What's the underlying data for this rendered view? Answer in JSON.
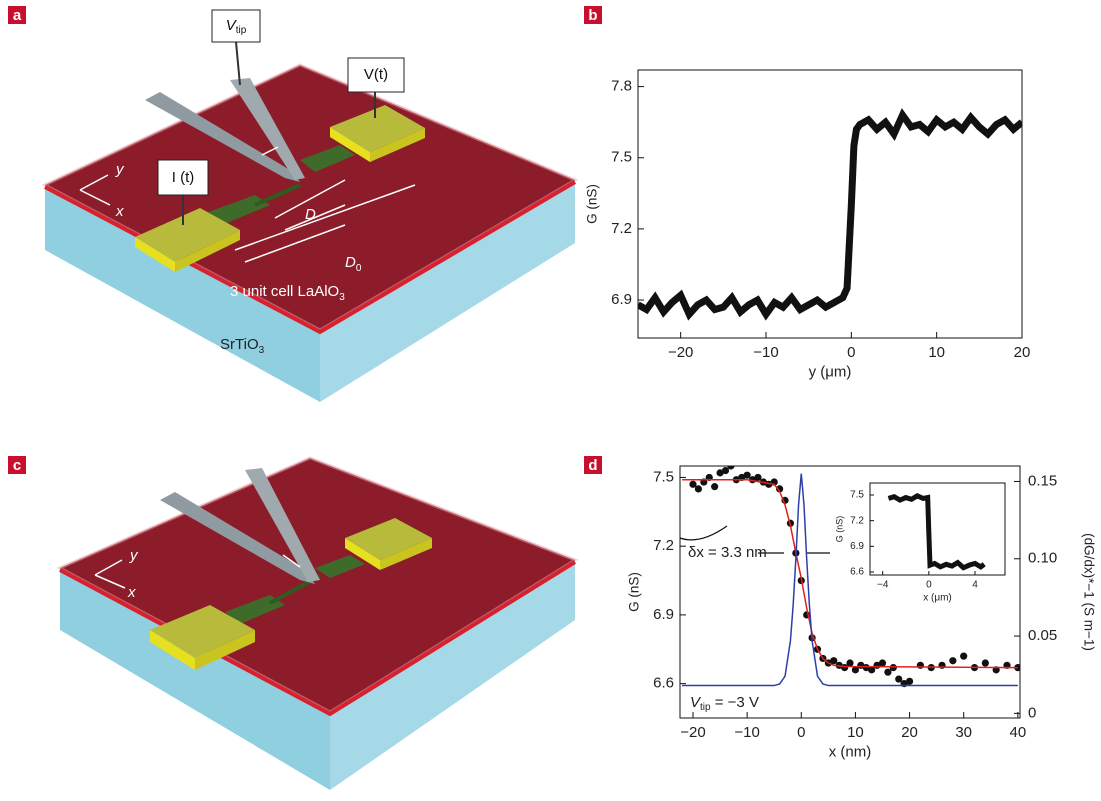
{
  "panel_labels": [
    "a",
    "b",
    "c",
    "d"
  ],
  "diagram_a": {
    "v_tip": {
      "main": "V",
      "sub": "tip"
    },
    "v_t": "V(t)",
    "i_t": "I (t)",
    "axis_y": "y",
    "axis_x": "x",
    "d": "D",
    "d0": {
      "main": "D",
      "sub": "0"
    },
    "layer": {
      "main": "3 unit cell LaAlO",
      "sub": "3"
    },
    "substrate": {
      "main": "SrTiO",
      "sub": "3"
    }
  },
  "diagram_c": {
    "axis_y": "y",
    "axis_x": "x"
  },
  "chart_data": [
    {
      "type": "line",
      "xlabel": "y (μm)",
      "ylabel": "G (nS)",
      "xlim": [
        -25,
        20
      ],
      "ylim": [
        6.74,
        7.87
      ],
      "xticks": [
        {
          "value": -20,
          "label": "−20"
        },
        {
          "value": -10,
          "label": "−10"
        },
        0,
        10,
        20
      ],
      "yticks": [
        6.9,
        7.2,
        7.5,
        7.8
      ],
      "series": [
        {
          "mark": "line",
          "color": "#111111",
          "width": 7,
          "x": [
            -25,
            -24,
            -23,
            -22,
            -21,
            -20,
            -19,
            -18,
            -17,
            -16,
            -15,
            -14,
            -13,
            -12,
            -11,
            -10,
            -9,
            -8,
            -7,
            -6,
            -5,
            -4,
            -3,
            -2,
            -1,
            -0.5,
            0,
            0.3,
            0.6,
            1,
            2,
            3,
            4,
            5,
            6,
            7,
            8,
            9,
            10,
            11,
            12,
            13,
            14,
            15,
            16,
            17,
            18,
            19,
            20
          ],
          "values": [
            6.88,
            6.86,
            6.91,
            6.85,
            6.89,
            6.92,
            6.84,
            6.88,
            6.9,
            6.86,
            6.87,
            6.91,
            6.85,
            6.88,
            6.9,
            6.84,
            6.89,
            6.87,
            6.91,
            6.86,
            6.88,
            6.9,
            6.87,
            6.89,
            6.91,
            6.95,
            7.3,
            7.55,
            7.62,
            7.64,
            7.66,
            7.62,
            7.65,
            7.6,
            7.68,
            7.63,
            7.64,
            7.61,
            7.66,
            7.63,
            7.65,
            7.62,
            7.67,
            7.63,
            7.6,
            7.64,
            7.66,
            7.62,
            7.65
          ]
        }
      ]
    },
    {
      "type": "line",
      "xlabel": "x (nm)",
      "ylabel": "G (nS)",
      "y2label": "(dG/dx)*−1 (S m−1)",
      "xlim": [
        -22.4,
        40.4
      ],
      "ylim": [
        6.45,
        7.55
      ],
      "y2lim": [
        -0.003,
        0.16
      ],
      "xticks": [
        {
          "value": -20,
          "label": "−20"
        },
        {
          "value": -10,
          "label": "−10"
        },
        0,
        10,
        20,
        30,
        40
      ],
      "yticks": [
        6.6,
        6.9,
        7.2,
        7.5
      ],
      "y2ticks": [
        0,
        0.05,
        {
          "value": 0.1,
          "label": "0.10"
        },
        0.15
      ],
      "annotations": [
        "δx = 3.3 nm",
        {
          "main": "V",
          "sub": "tip",
          "rest": " = −3 V"
        }
      ],
      "series": [
        {
          "mark": "scatter",
          "color": "#111111",
          "x": [
            -20,
            -19,
            -18,
            -17,
            -16,
            -15,
            -14,
            -13,
            -12,
            -11,
            -10,
            -9,
            -8,
            -7,
            -6,
            -5,
            -4,
            -3,
            -2,
            -1,
            0,
            1,
            2,
            3,
            4,
            5,
            6,
            7,
            8,
            9,
            10,
            11,
            12,
            13,
            14,
            15,
            16,
            17,
            18,
            19,
            20,
            22,
            24,
            26,
            28,
            30,
            32,
            34,
            36,
            38,
            40
          ],
          "values": [
            7.47,
            7.45,
            7.48,
            7.5,
            7.46,
            7.52,
            7.53,
            7.55,
            7.49,
            7.5,
            7.51,
            7.49,
            7.5,
            7.48,
            7.47,
            7.48,
            7.45,
            7.4,
            7.3,
            7.17,
            7.05,
            6.9,
            6.8,
            6.75,
            6.71,
            6.69,
            6.7,
            6.68,
            6.67,
            6.69,
            6.66,
            6.68,
            6.67,
            6.66,
            6.68,
            6.69,
            6.65,
            6.67,
            6.62,
            6.6,
            6.61,
            6.68,
            6.67,
            6.68,
            6.7,
            6.72,
            6.67,
            6.69,
            6.66,
            6.68,
            6.67
          ]
        },
        {
          "mark": "line",
          "color": "#e0201c",
          "width": 1.5,
          "x": [
            -22,
            -10,
            -5,
            -4,
            -3,
            -2,
            -1,
            0,
            1,
            2,
            3,
            4,
            5,
            6,
            8,
            40
          ],
          "values": [
            7.49,
            7.49,
            7.47,
            7.44,
            7.38,
            7.29,
            7.17,
            7.06,
            6.93,
            6.82,
            6.75,
            6.71,
            6.69,
            6.68,
            6.675,
            6.67
          ]
        },
        {
          "mark": "line",
          "color": "#2b3fa8",
          "width": 1.5,
          "axis": "y2",
          "x": [
            -22,
            -5,
            -4,
            -3,
            -2,
            -1.5,
            -1,
            -0.5,
            0,
            0.5,
            1,
            1.5,
            2,
            3,
            4,
            5,
            40
          ],
          "values": [
            0.018,
            0.018,
            0.019,
            0.024,
            0.047,
            0.07,
            0.1,
            0.135,
            0.155,
            0.135,
            0.1,
            0.07,
            0.047,
            0.024,
            0.019,
            0.018,
            0.018
          ]
        }
      ]
    },
    {
      "type": "line",
      "xlabel": "x (μm)",
      "ylabel": "G (nS)",
      "xlim": [
        -5.1,
        6.6
      ],
      "ylim": [
        6.565,
        7.64
      ],
      "xticks": [
        {
          "value": -4,
          "label": "−4"
        },
        0,
        4
      ],
      "yticks": [
        6.6,
        6.9,
        7.2,
        7.5
      ],
      "series": [
        {
          "mark": "line",
          "color": "#111111",
          "width": 5,
          "x": [
            -3.5,
            -3,
            -2.5,
            -2,
            -1.5,
            -1,
            -0.5,
            -0.1,
            0,
            0.1,
            0.5,
            1,
            1.5,
            2,
            2.5,
            3,
            3.5,
            4,
            4.5,
            4.8
          ],
          "values": [
            7.46,
            7.48,
            7.44,
            7.47,
            7.45,
            7.49,
            7.46,
            7.47,
            7.05,
            6.68,
            6.7,
            6.66,
            6.69,
            6.67,
            6.71,
            6.65,
            6.68,
            6.7,
            6.66,
            6.69
          ]
        }
      ]
    }
  ]
}
